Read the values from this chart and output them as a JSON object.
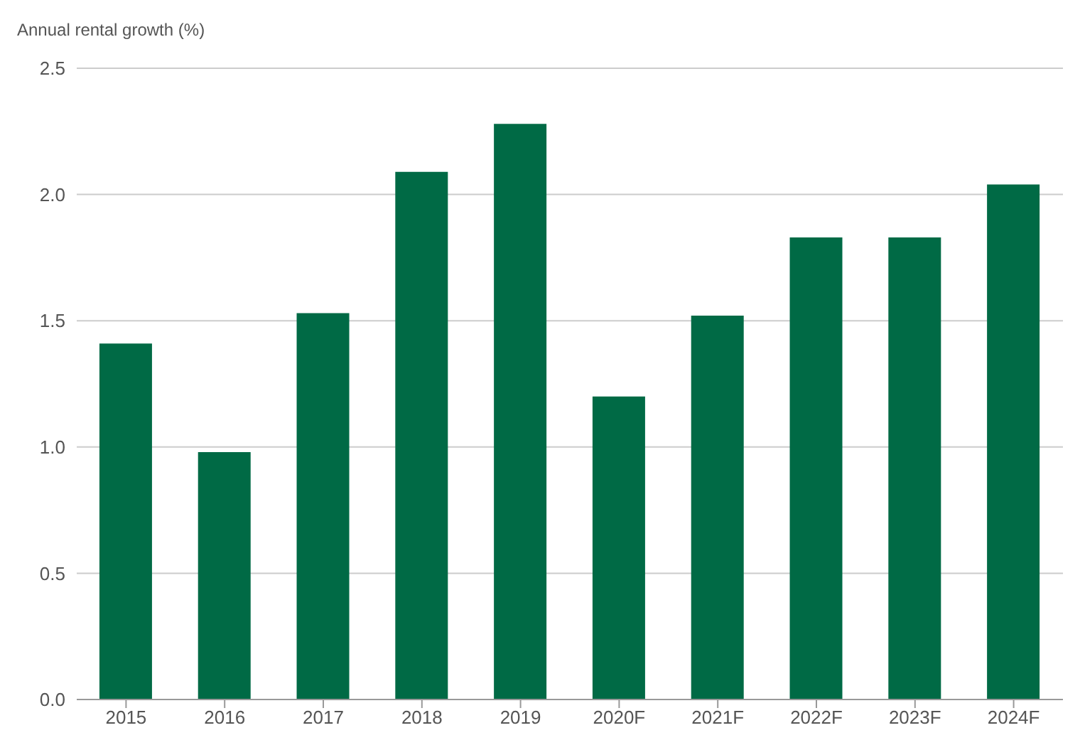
{
  "chart_data": {
    "type": "bar",
    "ylabel": "Annual rental growth (%)",
    "categories": [
      "2015",
      "2016",
      "2017",
      "2018",
      "2019",
      "2020F",
      "2021F",
      "2022F",
      "2023F",
      "2024F"
    ],
    "values": [
      1.41,
      0.98,
      1.53,
      2.09,
      2.28,
      1.2,
      1.52,
      1.83,
      1.83,
      2.04
    ],
    "color": "#006a45",
    "ylim": [
      0,
      2.5
    ],
    "yticks": [
      {
        "value": 0,
        "label": "0.0"
      },
      {
        "value": 0.5,
        "label": "0.5"
      },
      {
        "value": 1,
        "label": "1.0"
      },
      {
        "value": 1.5,
        "label": "1.5"
      },
      {
        "value": 2,
        "label": "2.0"
      },
      {
        "value": 2.5,
        "label": "2.5"
      }
    ],
    "grid": "y"
  }
}
